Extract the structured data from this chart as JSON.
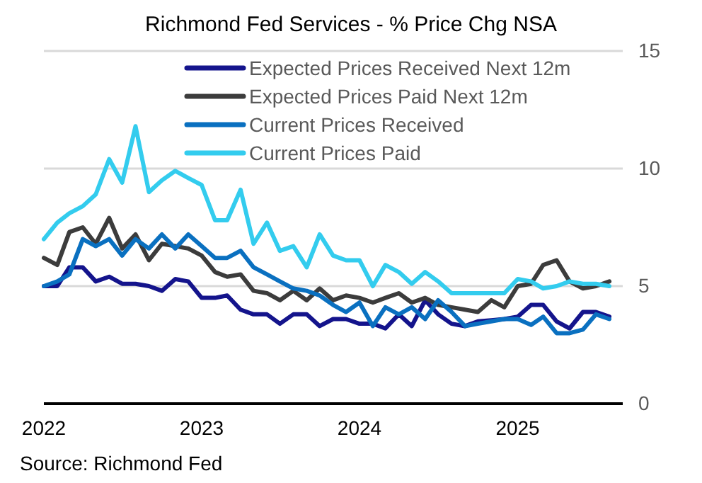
{
  "chart_data": {
    "type": "line",
    "title": "Richmond Fed Services - % Price Chg NSA",
    "x": [
      "2022-01",
      "2022-02",
      "2022-03",
      "2022-04",
      "2022-05",
      "2022-06",
      "2022-07",
      "2022-08",
      "2022-09",
      "2022-10",
      "2022-11",
      "2022-12",
      "2023-01",
      "2023-02",
      "2023-03",
      "2023-04",
      "2023-05",
      "2023-06",
      "2023-07",
      "2023-08",
      "2023-09",
      "2023-10",
      "2023-11",
      "2023-12",
      "2024-01",
      "2024-02",
      "2024-03",
      "2024-04",
      "2024-05",
      "2024-06",
      "2024-07",
      "2024-08",
      "2024-09",
      "2024-10",
      "2024-11",
      "2024-12",
      "2025-01",
      "2025-02",
      "2025-03",
      "2025-04",
      "2025-05",
      "2025-06",
      "2025-07",
      "2025-08"
    ],
    "series": [
      {
        "name": "Expected Prices Received Next 12m",
        "color": "#14148c",
        "values": [
          5.0,
          5.0,
          5.8,
          5.8,
          5.2,
          5.4,
          5.1,
          5.1,
          5.0,
          4.8,
          5.3,
          5.2,
          4.5,
          4.5,
          4.6,
          4.0,
          3.8,
          3.8,
          3.4,
          3.8,
          3.8,
          3.3,
          3.6,
          3.6,
          3.4,
          3.4,
          3.2,
          3.8,
          3.3,
          4.4,
          3.8,
          3.4,
          3.3,
          3.5,
          3.55,
          3.6,
          3.7,
          4.2,
          4.2,
          3.5,
          3.2,
          3.9,
          3.9,
          3.7
        ]
      },
      {
        "name": "Expected Prices Paid Next 12m",
        "color": "#3c3c3c",
        "values": [
          6.2,
          5.9,
          7.3,
          7.5,
          6.8,
          7.9,
          6.6,
          7.2,
          6.1,
          6.8,
          6.7,
          6.6,
          6.3,
          5.6,
          5.4,
          5.5,
          4.8,
          4.7,
          4.4,
          4.8,
          4.4,
          4.9,
          4.4,
          4.6,
          4.5,
          4.3,
          4.5,
          4.7,
          4.3,
          4.5,
          4.2,
          4.1,
          4.0,
          3.9,
          4.4,
          4.1,
          5.0,
          5.1,
          5.9,
          6.1,
          5.2,
          4.9,
          5.0,
          5.2
        ]
      },
      {
        "name": "Current Prices Received",
        "color": "#0a70c0",
        "values": [
          5.0,
          5.2,
          5.5,
          7.0,
          6.7,
          7.0,
          6.3,
          7.0,
          6.6,
          7.2,
          6.6,
          7.2,
          6.7,
          6.2,
          6.2,
          6.5,
          5.8,
          5.5,
          5.2,
          4.9,
          4.8,
          4.6,
          4.2,
          3.9,
          4.3,
          3.3,
          4.1,
          3.8,
          4.1,
          3.6,
          4.4,
          3.9,
          3.3,
          3.4,
          3.5,
          3.6,
          3.6,
          3.35,
          3.7,
          3.0,
          3.0,
          3.15,
          3.8,
          3.6
        ]
      },
      {
        "name": "Current Prices Paid",
        "color": "#33ccee",
        "values": [
          7.0,
          7.7,
          8.1,
          8.4,
          8.9,
          10.4,
          9.4,
          11.8,
          9.0,
          9.5,
          9.9,
          9.6,
          9.3,
          7.8,
          7.8,
          9.1,
          6.8,
          7.7,
          6.5,
          6.7,
          5.8,
          7.2,
          6.3,
          6.1,
          6.1,
          5.0,
          5.9,
          5.6,
          5.1,
          5.6,
          5.2,
          4.7,
          4.7,
          4.7,
          4.7,
          4.7,
          5.3,
          5.2,
          4.9,
          5.0,
          5.2,
          5.1,
          5.1,
          5.0
        ]
      }
    ],
    "xlim": [
      "2022-01",
      "2025-09"
    ],
    "xticks": [
      "2022",
      "2023",
      "2024",
      "2025"
    ],
    "ylim": [
      0,
      15
    ],
    "yticks": [
      0,
      5,
      10,
      15
    ],
    "grid": "y",
    "legend": "top",
    "line_style": "solid",
    "marker": "none",
    "annotations": [
      "Source: Richmond Fed"
    ]
  }
}
